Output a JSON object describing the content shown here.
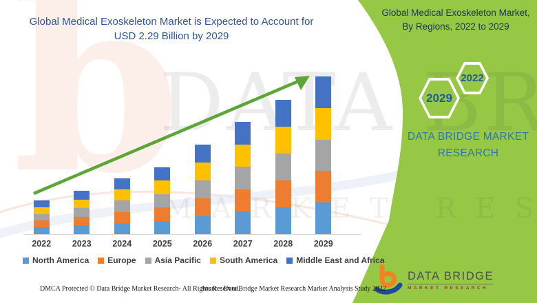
{
  "header": {
    "chart_title": "Global Medical Exoskeleton Market is Expected to Account for USD 2.29 Billion by 2029"
  },
  "banner": {
    "title": "Global Medical Exoskeleton Market, By Regions, 2022 to 2029",
    "hexagons": [
      {
        "label": "2029"
      },
      {
        "label": "2022"
      }
    ],
    "brand_text": "DATA BRIDGE MARKET RESEARCH",
    "colors": {
      "background": "#96c846",
      "title_text": "#17365d",
      "brand_text": "#2e75b6",
      "hex_border": "#ffffff"
    }
  },
  "chart_data": {
    "type": "bar",
    "stacked": true,
    "title": "Global Medical Exoskeleton Market is Expected to Account for USD 2.29 Billion by 2029",
    "categories": [
      "2022",
      "2023",
      "2024",
      "2025",
      "2026",
      "2027",
      "2028",
      "2029"
    ],
    "series": [
      {
        "name": "North America",
        "color": "#5b9bd5",
        "values": [
          0.098,
          0.126,
          0.162,
          0.194,
          0.26,
          0.326,
          0.39,
          0.458
        ]
      },
      {
        "name": "Europe",
        "color": "#ed7d31",
        "values": [
          0.098,
          0.126,
          0.162,
          0.194,
          0.26,
          0.326,
          0.39,
          0.458
        ]
      },
      {
        "name": "Asia Pacific",
        "color": "#a5a5a5",
        "values": [
          0.098,
          0.126,
          0.162,
          0.194,
          0.26,
          0.326,
          0.39,
          0.458
        ]
      },
      {
        "name": "South America",
        "color": "#ffc000",
        "values": [
          0.098,
          0.126,
          0.162,
          0.194,
          0.26,
          0.326,
          0.39,
          0.458
        ]
      },
      {
        "name": "Middle East and Africa",
        "color": "#4472c4",
        "values": [
          0.098,
          0.126,
          0.162,
          0.194,
          0.26,
          0.326,
          0.39,
          0.458
        ]
      }
    ],
    "totals": [
      0.49,
      0.63,
      0.81,
      0.97,
      1.3,
      1.63,
      1.95,
      2.29
    ],
    "unit": "USD billion (estimated from bar heights; 2029 total labeled as USD 2.29 billion)",
    "xlabel": "",
    "ylabel": "",
    "ylim": [
      0,
      2.4
    ],
    "grid": false,
    "axis_labels_visible": false,
    "legend_position": "bottom",
    "annotations": [
      "green upward trend arrow from 2022 to 2029"
    ],
    "trend_arrow_color": "#5ba637"
  },
  "watermark": {
    "big_letter": "b",
    "line1": "DATA BRIDGE",
    "line2": "MARKET RESEARCH"
  },
  "logo": {
    "name": "DATA BRIDGE",
    "subtext": "MARKET RESEARCH"
  },
  "footer": {
    "left": "DMCA Protected © Data Bridge Market Research- All Rights Reserved.",
    "right": "Source: Data Bridge Market Research Market Analysis Study 2022"
  }
}
